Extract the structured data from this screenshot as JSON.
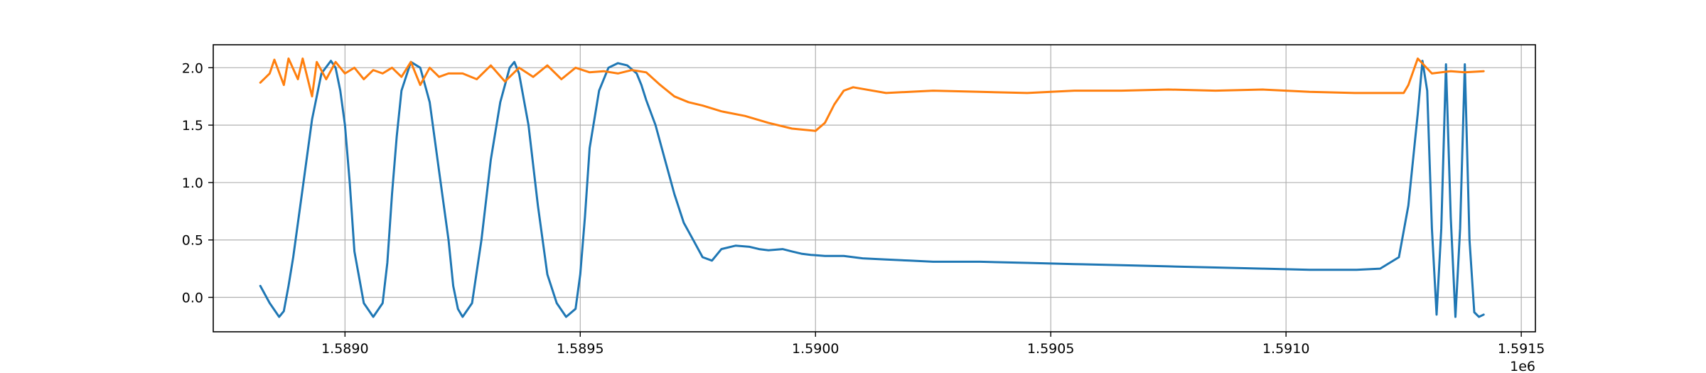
{
  "chart_data": {
    "type": "line",
    "title": "",
    "xlabel": "",
    "ylabel": "",
    "x_offset_label": "1e6",
    "x_tick_values": [
      1.589,
      1.5895,
      1.59,
      1.5905,
      1.591,
      1.5915
    ],
    "x_tick_labels": [
      "1.5890",
      "1.5895",
      "1.5900",
      "1.5905",
      "1.5910",
      "1.5915"
    ],
    "y_tick_values": [
      0.0,
      0.5,
      1.0,
      1.5,
      2.0
    ],
    "y_tick_labels": [
      "0.0",
      "0.5",
      "1.0",
      "1.5",
      "2.0"
    ],
    "xlim": [
      1.58872,
      1.59153
    ],
    "ylim": [
      -0.3,
      2.2
    ],
    "grid": true,
    "legend": "none",
    "series": [
      {
        "color": "#1f77b4",
        "x": [
          1.58882,
          1.58884,
          1.58886,
          1.58887,
          1.58888,
          1.58889,
          1.58891,
          1.58893,
          1.58895,
          1.58897,
          1.58898,
          1.58899,
          1.589,
          1.58901,
          1.58902,
          1.58904,
          1.58906,
          1.58908,
          1.58909,
          1.5891,
          1.58911,
          1.58912,
          1.58914,
          1.58916,
          1.58918,
          1.5892,
          1.58922,
          1.58923,
          1.58924,
          1.58925,
          1.58927,
          1.58929,
          1.58931,
          1.58933,
          1.58935,
          1.58936,
          1.58937,
          1.58939,
          1.58941,
          1.58943,
          1.58945,
          1.58947,
          1.58949,
          1.5895,
          1.58951,
          1.58952,
          1.58954,
          1.58956,
          1.58958,
          1.5896,
          1.58962,
          1.58963,
          1.58964,
          1.58966,
          1.58968,
          1.5897,
          1.58972,
          1.58974,
          1.58976,
          1.58978,
          1.5898,
          1.58983,
          1.58986,
          1.58988,
          1.5899,
          1.58993,
          1.58995,
          1.58997,
          1.58999,
          1.59002,
          1.59006,
          1.5901,
          1.59015,
          1.5902,
          1.59025,
          1.59035,
          1.59045,
          1.59055,
          1.59065,
          1.59075,
          1.59085,
          1.59095,
          1.59105,
          1.59115,
          1.5912,
          1.59124,
          1.59126,
          1.59128,
          1.59129,
          1.5913,
          1.59131,
          1.59132,
          1.59133,
          1.59134,
          1.59135,
          1.59136,
          1.59137,
          1.59138,
          1.59139,
          1.5914,
          1.59141,
          1.59142
        ],
        "y": [
          0.1,
          -0.05,
          -0.17,
          -0.12,
          0.1,
          0.35,
          0.95,
          1.55,
          1.95,
          2.06,
          2.0,
          1.8,
          1.5,
          1.0,
          0.4,
          -0.05,
          -0.17,
          -0.05,
          0.3,
          0.9,
          1.4,
          1.8,
          2.05,
          2.0,
          1.7,
          1.1,
          0.5,
          0.1,
          -0.1,
          -0.17,
          -0.05,
          0.5,
          1.2,
          1.7,
          2.0,
          2.05,
          1.95,
          1.5,
          0.8,
          0.2,
          -0.05,
          -0.17,
          -0.1,
          0.2,
          0.7,
          1.3,
          1.8,
          2.0,
          2.04,
          2.02,
          1.95,
          1.85,
          1.72,
          1.5,
          1.2,
          0.9,
          0.65,
          0.5,
          0.35,
          0.32,
          0.42,
          0.45,
          0.44,
          0.42,
          0.41,
          0.42,
          0.4,
          0.38,
          0.37,
          0.36,
          0.36,
          0.34,
          0.33,
          0.32,
          0.31,
          0.31,
          0.3,
          0.29,
          0.28,
          0.27,
          0.26,
          0.25,
          0.24,
          0.24,
          0.25,
          0.35,
          0.8,
          1.6,
          2.06,
          1.8,
          0.6,
          -0.15,
          0.6,
          2.03,
          0.7,
          -0.17,
          0.6,
          2.03,
          0.5,
          -0.13,
          -0.17,
          -0.15
        ]
      },
      {
        "color": "#ff7f0e",
        "x": [
          1.58882,
          1.58884,
          1.58885,
          1.58887,
          1.58888,
          1.5889,
          1.58891,
          1.58893,
          1.58894,
          1.58896,
          1.58898,
          1.589,
          1.58902,
          1.58904,
          1.58906,
          1.58908,
          1.5891,
          1.58912,
          1.58914,
          1.58916,
          1.58918,
          1.5892,
          1.58922,
          1.58925,
          1.58928,
          1.58931,
          1.58934,
          1.58937,
          1.5894,
          1.58943,
          1.58946,
          1.58949,
          1.58952,
          1.58955,
          1.58958,
          1.58961,
          1.58964,
          1.58967,
          1.5897,
          1.58973,
          1.58976,
          1.5898,
          1.58985,
          1.5899,
          1.58995,
          1.59,
          1.59002,
          1.59004,
          1.59006,
          1.59008,
          1.59015,
          1.59025,
          1.59035,
          1.59045,
          1.59055,
          1.59065,
          1.59075,
          1.59085,
          1.59095,
          1.59105,
          1.59115,
          1.59125,
          1.59126,
          1.59128,
          1.59131,
          1.59135,
          1.59138,
          1.59142
        ],
        "y": [
          1.87,
          1.95,
          2.07,
          1.85,
          2.08,
          1.9,
          2.08,
          1.75,
          2.05,
          1.9,
          2.05,
          1.95,
          2.0,
          1.9,
          1.98,
          1.95,
          2.0,
          1.92,
          2.05,
          1.85,
          2.0,
          1.92,
          1.95,
          1.95,
          1.9,
          2.02,
          1.88,
          2.0,
          1.92,
          2.02,
          1.9,
          2.0,
          1.96,
          1.97,
          1.95,
          1.98,
          1.96,
          1.85,
          1.75,
          1.7,
          1.67,
          1.62,
          1.58,
          1.52,
          1.47,
          1.45,
          1.52,
          1.68,
          1.8,
          1.83,
          1.78,
          1.8,
          1.79,
          1.78,
          1.8,
          1.8,
          1.81,
          1.8,
          1.81,
          1.79,
          1.78,
          1.78,
          1.85,
          2.08,
          1.95,
          1.97,
          1.96,
          1.97
        ]
      }
    ]
  }
}
